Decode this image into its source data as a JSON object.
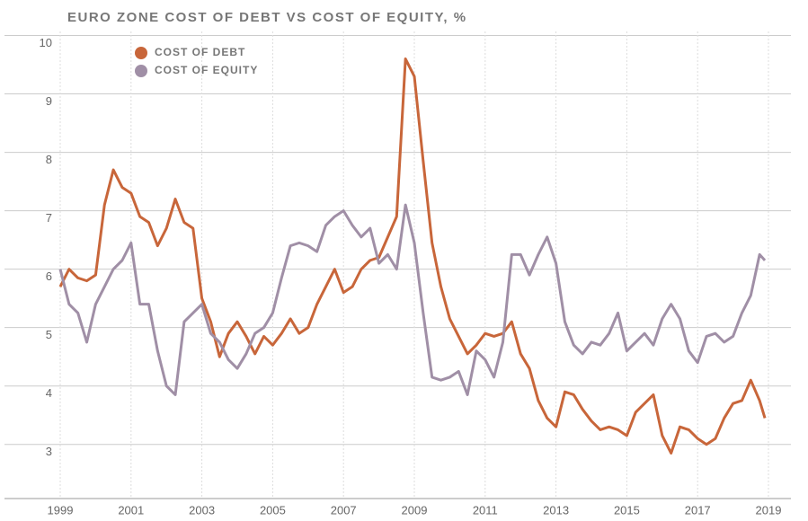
{
  "chart_data": {
    "type": "line",
    "title": "EURO ZONE COST OF DEBT VS COST OF EQUITY, %",
    "x": [
      1999.0,
      1999.25,
      1999.5,
      1999.75,
      2000.0,
      2000.25,
      2000.5,
      2000.75,
      2001.0,
      2001.25,
      2001.5,
      2001.75,
      2002.0,
      2002.25,
      2002.5,
      2002.75,
      2003.0,
      2003.25,
      2003.5,
      2003.75,
      2004.0,
      2004.25,
      2004.5,
      2004.75,
      2005.0,
      2005.25,
      2005.5,
      2005.75,
      2006.0,
      2006.25,
      2006.5,
      2006.75,
      2007.0,
      2007.25,
      2007.5,
      2007.75,
      2008.0,
      2008.25,
      2008.5,
      2008.75,
      2009.0,
      2009.25,
      2009.5,
      2009.75,
      2010.0,
      2010.25,
      2010.5,
      2010.75,
      2011.0,
      2011.25,
      2011.5,
      2011.75,
      2012.0,
      2012.25,
      2012.5,
      2012.75,
      2013.0,
      2013.25,
      2013.5,
      2013.75,
      2014.0,
      2014.25,
      2014.5,
      2014.75,
      2015.0,
      2015.25,
      2015.5,
      2015.75,
      2016.0,
      2016.25,
      2016.5,
      2016.75,
      2017.0,
      2017.25,
      2017.5,
      2017.75,
      2018.0,
      2018.25,
      2018.5,
      2018.75,
      2018.9
    ],
    "series": [
      {
        "name": "COST OF DEBT",
        "color": "#c8663a",
        "values": [
          5.7,
          6.0,
          5.85,
          5.8,
          5.9,
          7.1,
          7.7,
          7.4,
          7.3,
          6.9,
          6.8,
          6.4,
          6.7,
          7.2,
          6.8,
          6.7,
          5.5,
          5.1,
          4.5,
          4.9,
          5.1,
          4.85,
          4.55,
          4.85,
          4.7,
          4.9,
          5.15,
          4.9,
          5.0,
          5.4,
          5.7,
          6.0,
          5.6,
          5.7,
          6.0,
          6.15,
          6.2,
          6.55,
          6.9,
          9.6,
          9.3,
          7.85,
          6.45,
          5.7,
          5.15,
          4.85,
          4.55,
          4.7,
          4.9,
          4.85,
          4.9,
          5.1,
          4.55,
          4.3,
          3.75,
          3.45,
          3.3,
          3.9,
          3.85,
          3.6,
          3.4,
          3.25,
          3.3,
          3.25,
          3.15,
          3.55,
          3.7,
          3.85,
          3.15,
          2.85,
          3.3,
          3.25,
          3.1,
          3.0,
          3.1,
          3.45,
          3.7,
          3.75,
          4.1,
          3.75,
          3.45
        ]
      },
      {
        "name": "COST OF EQUITY",
        "color": "#a08fa6",
        "values": [
          6.0,
          5.4,
          5.25,
          4.75,
          5.4,
          5.7,
          6.0,
          6.15,
          6.45,
          5.4,
          5.4,
          4.6,
          4.0,
          3.85,
          5.1,
          5.25,
          5.4,
          4.9,
          4.75,
          4.45,
          4.3,
          4.55,
          4.9,
          5.0,
          5.25,
          5.85,
          6.4,
          6.45,
          6.4,
          6.3,
          6.75,
          6.9,
          7.0,
          6.75,
          6.55,
          6.7,
          6.1,
          6.25,
          6.0,
          7.1,
          6.45,
          5.25,
          4.15,
          4.1,
          4.15,
          4.25,
          3.85,
          4.6,
          4.45,
          4.15,
          4.75,
          6.25,
          6.25,
          5.9,
          6.25,
          6.55,
          6.1,
          5.1,
          4.7,
          4.55,
          4.75,
          4.7,
          4.9,
          5.25,
          4.6,
          4.75,
          4.9,
          4.7,
          5.15,
          5.4,
          5.15,
          4.6,
          4.4,
          4.85,
          4.9,
          4.75,
          4.85,
          5.25,
          5.55,
          6.25,
          6.15
        ]
      }
    ],
    "xlim": [
      1999,
      2019
    ],
    "xticks": [
      1999,
      2001,
      2003,
      2005,
      2007,
      2009,
      2011,
      2013,
      2015,
      2017,
      2019
    ],
    "ylim": [
      2.15,
      10.3
    ],
    "yticks": [
      3,
      4,
      5,
      6,
      7,
      8,
      9,
      10
    ],
    "grid": true
  }
}
